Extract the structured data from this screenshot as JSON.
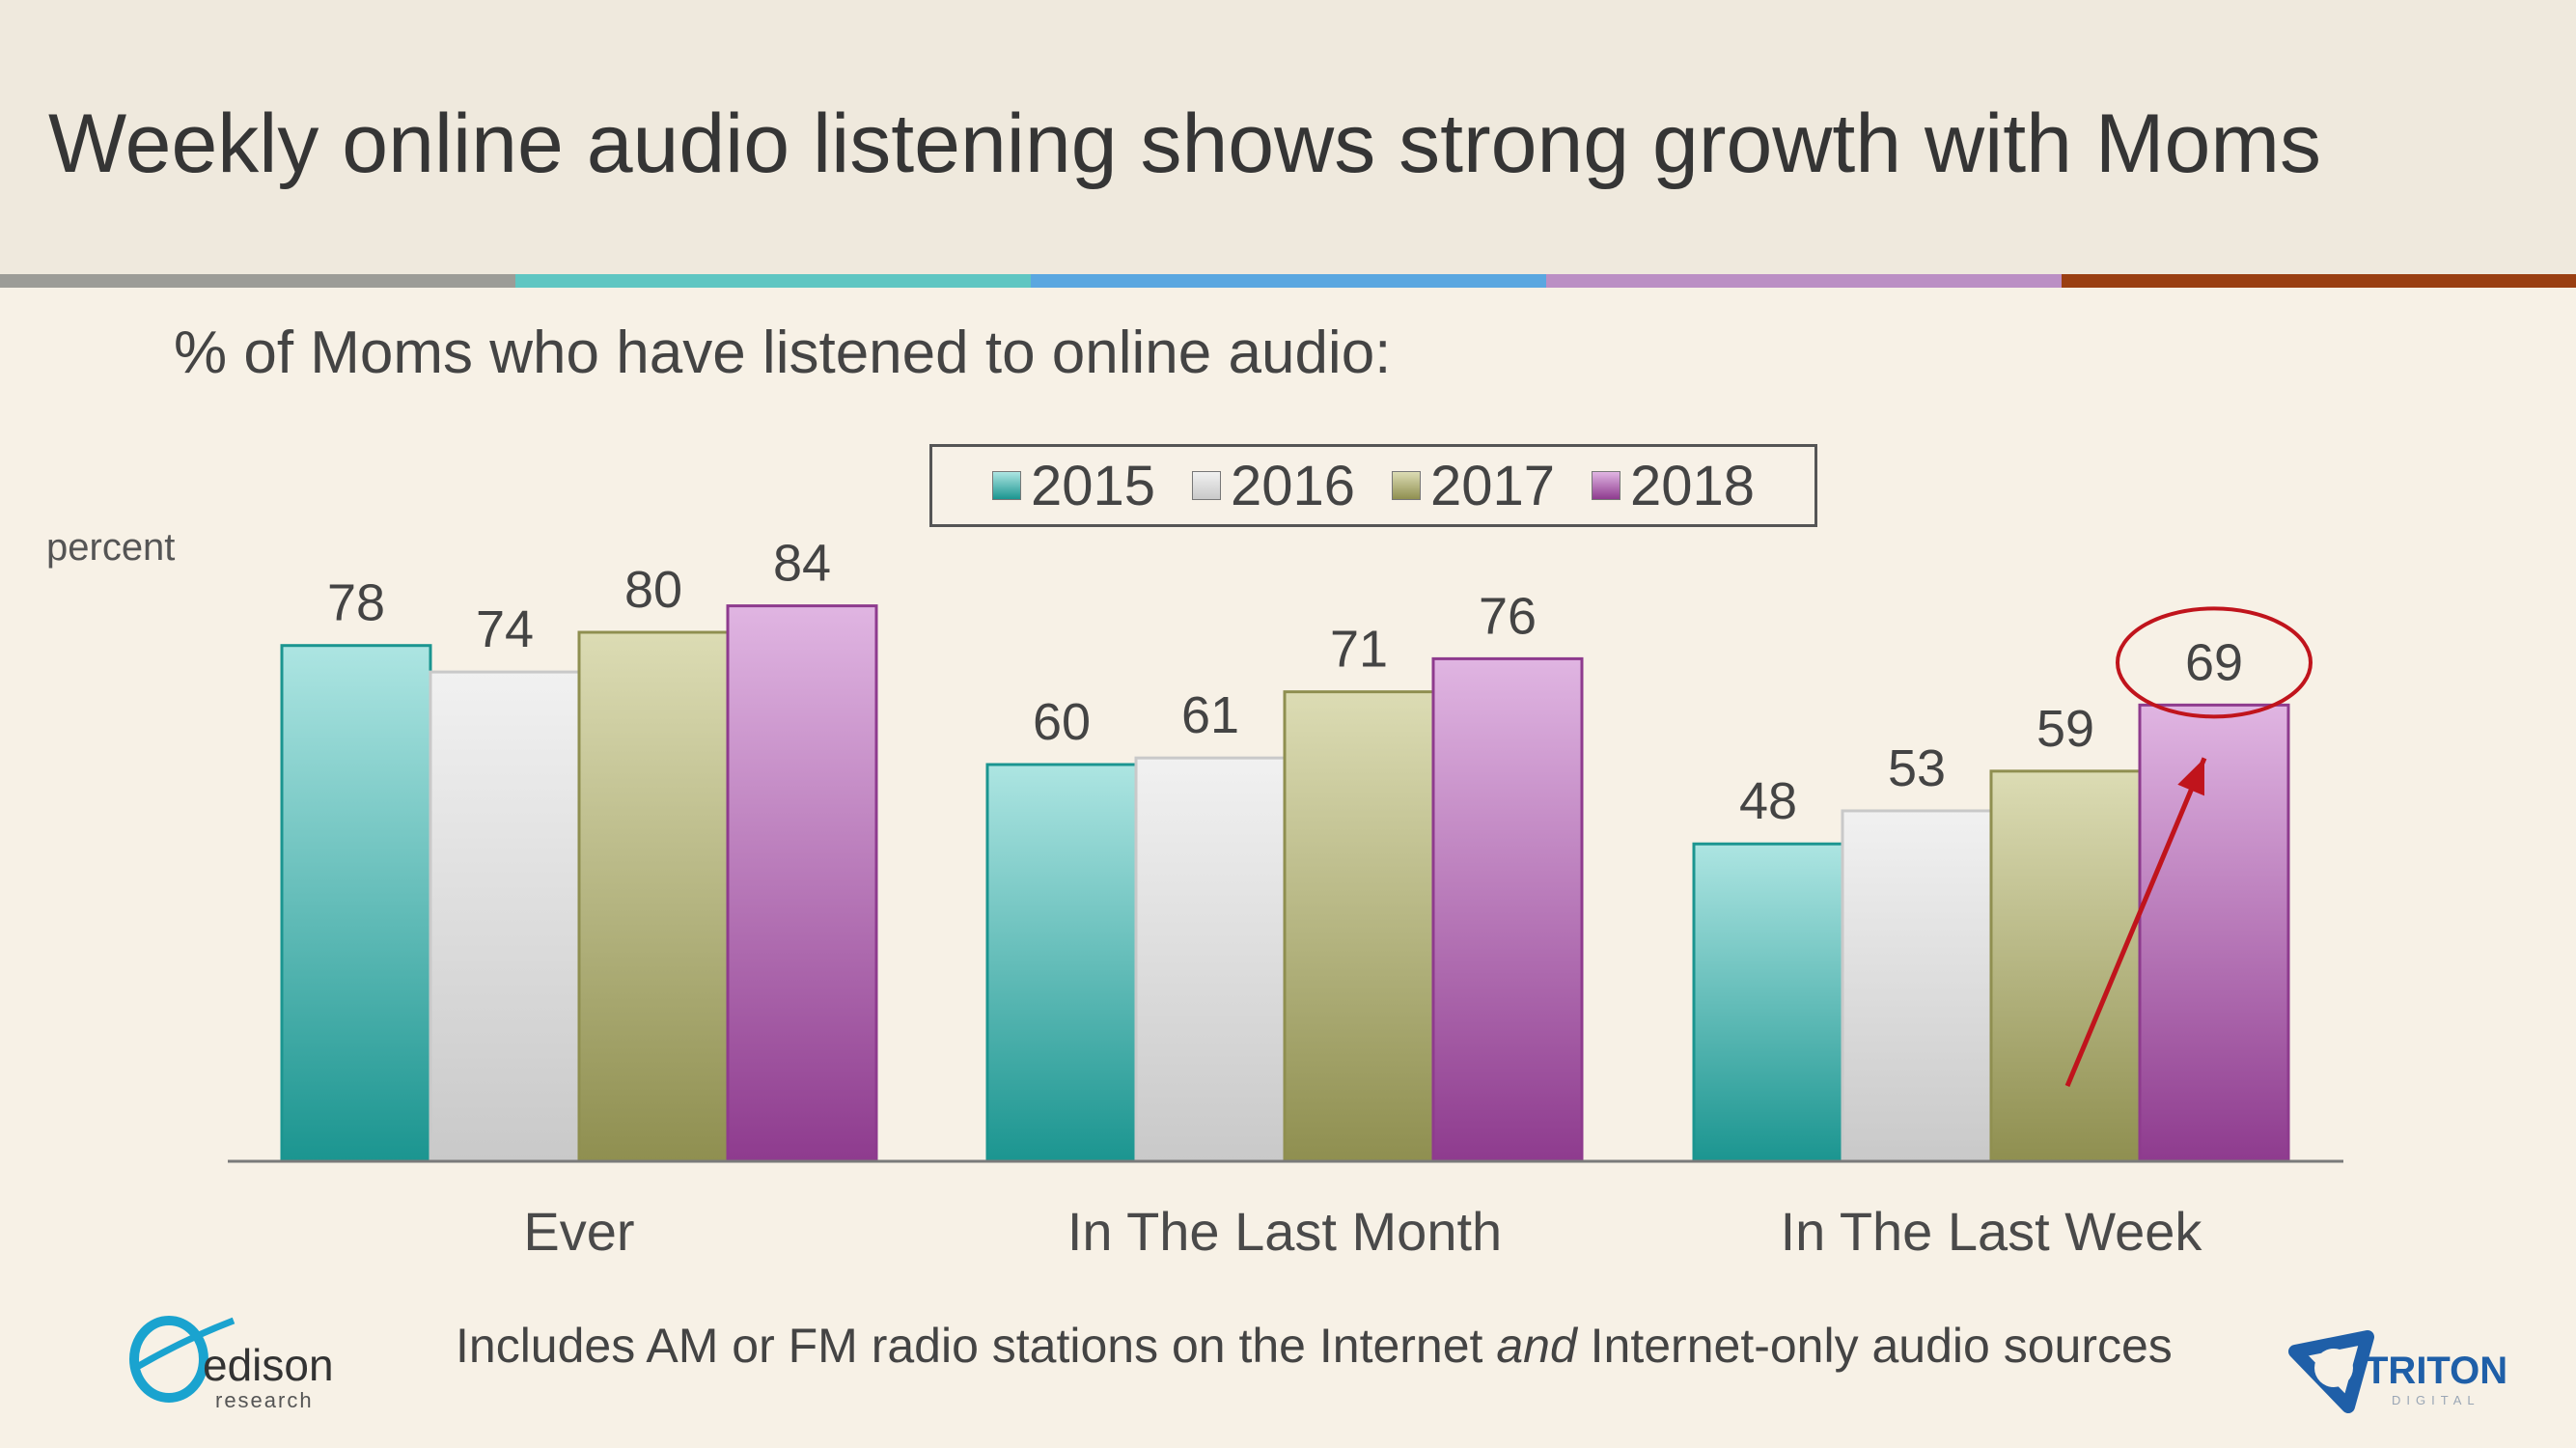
{
  "slide": {
    "title": "Weekly online audio listening shows strong growth with Moms",
    "subtitle": "% of Moms who have listened to online audio:",
    "footnote_part1": "Includes AM or FM radio stations on the Internet ",
    "footnote_italic": "and",
    "footnote_part2": " Internet-only audio sources",
    "stripe_colors": [
      "#9c9c97",
      "#5fc6c2",
      "#5aa7e0",
      "#bb8fc4",
      "#9a3f12"
    ]
  },
  "logos": {
    "edison_name": "edison",
    "edison_tagline": "research",
    "triton_name": "TRITON",
    "triton_tagline": "DIGITAL"
  },
  "chart_data": {
    "type": "bar",
    "title": "% of Moms who have listened to online audio:",
    "ylabel": "percent",
    "xlabel": "",
    "categories": [
      "Ever",
      "In The Last Month",
      "In The Last Week"
    ],
    "series": [
      {
        "name": "2015",
        "values": [
          78,
          60,
          48
        ],
        "color_top": "#ade5e2",
        "color_bottom": "#1b9590"
      },
      {
        "name": "2016",
        "values": [
          74,
          61,
          53
        ],
        "color_top": "#f1f1f1",
        "color_bottom": "#c9c9c9"
      },
      {
        "name": "2017",
        "values": [
          80,
          71,
          59
        ],
        "color_top": "#dcdcb4",
        "color_bottom": "#8f8f50"
      },
      {
        "name": "2018",
        "values": [
          84,
          76,
          69
        ],
        "color_top": "#e0b5e2",
        "color_bottom": "#8e3b8e"
      }
    ],
    "ylim": [
      0,
      90
    ],
    "grid": false,
    "legend": "top-center",
    "annotation": {
      "label": "69",
      "category": "In The Last Week",
      "series": "2018",
      "shape": "red ellipse with upward arrow",
      "color": "#c0141c"
    }
  }
}
